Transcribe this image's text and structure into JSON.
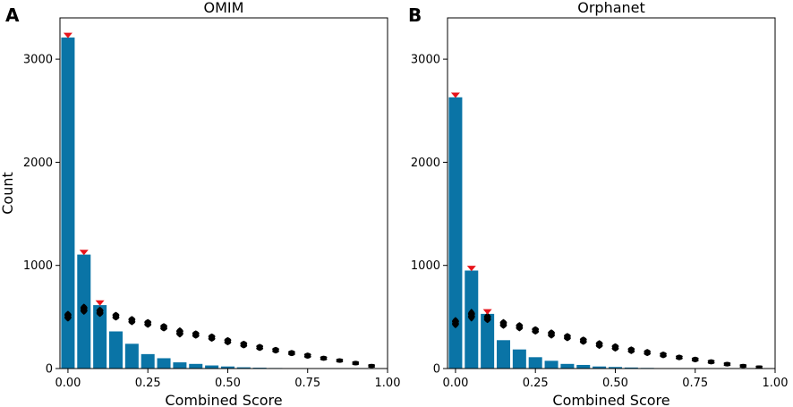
{
  "chart_data": [
    {
      "type": "bar",
      "panel_label": "A",
      "title": "OMIM",
      "xlabel": "Combined Score",
      "ylabel": "Count",
      "xlim": [
        -0.025,
        1.0
      ],
      "ylim": [
        0,
        3400
      ],
      "xticks": [
        0.0,
        0.25,
        0.5,
        0.75,
        1.0
      ],
      "xtick_labels": [
        "0.00",
        "0.25",
        "0.50",
        "0.75",
        "1.00"
      ],
      "yticks": [
        0,
        1000,
        2000,
        3000
      ],
      "ytick_labels": [
        "0",
        "1000",
        "2000",
        "3000"
      ],
      "bar_width": 0.042,
      "bar_color": "#0a74a6",
      "marker_color": "#e8141b",
      "null_color": "#000000",
      "categories": [
        0.0,
        0.05,
        0.1,
        0.15,
        0.2,
        0.25,
        0.3,
        0.35,
        0.4,
        0.45,
        0.5,
        0.55,
        0.6,
        0.65,
        0.7,
        0.75,
        0.8,
        0.85,
        0.9,
        0.95
      ],
      "values": [
        3210,
        1105,
        615,
        360,
        240,
        140,
        100,
        60,
        45,
        30,
        20,
        12,
        8,
        5,
        3,
        2,
        2,
        1,
        1,
        1
      ],
      "observed_markers": [
        {
          "x": 0.0,
          "y": 3230
        },
        {
          "x": 0.05,
          "y": 1125
        },
        {
          "x": 0.1,
          "y": 635
        }
      ],
      "null_distribution": [
        {
          "x": 0.0,
          "low": 455,
          "high": 560
        },
        {
          "x": 0.05,
          "low": 520,
          "high": 630
        },
        {
          "x": 0.1,
          "low": 500,
          "high": 600
        },
        {
          "x": 0.15,
          "low": 465,
          "high": 550
        },
        {
          "x": 0.2,
          "low": 420,
          "high": 510
        },
        {
          "x": 0.25,
          "low": 395,
          "high": 480
        },
        {
          "x": 0.3,
          "low": 360,
          "high": 440
        },
        {
          "x": 0.35,
          "low": 300,
          "high": 400
        },
        {
          "x": 0.4,
          "low": 290,
          "high": 370
        },
        {
          "x": 0.45,
          "low": 260,
          "high": 340
        },
        {
          "x": 0.5,
          "low": 225,
          "high": 305
        },
        {
          "x": 0.55,
          "low": 195,
          "high": 270
        },
        {
          "x": 0.6,
          "low": 170,
          "high": 240
        },
        {
          "x": 0.65,
          "low": 145,
          "high": 210
        },
        {
          "x": 0.7,
          "low": 120,
          "high": 180
        },
        {
          "x": 0.75,
          "low": 95,
          "high": 155
        },
        {
          "x": 0.8,
          "low": 75,
          "high": 125
        },
        {
          "x": 0.85,
          "low": 55,
          "high": 100
        },
        {
          "x": 0.9,
          "low": 30,
          "high": 75
        },
        {
          "x": 0.95,
          "low": 5,
          "high": 45
        }
      ]
    },
    {
      "type": "bar",
      "panel_label": "B",
      "title": "Orphanet",
      "xlabel": "Combined Score",
      "ylabel": "",
      "xlim": [
        -0.025,
        1.0
      ],
      "ylim": [
        0,
        3400
      ],
      "xticks": [
        0.0,
        0.25,
        0.5,
        0.75,
        1.0
      ],
      "xtick_labels": [
        "0.00",
        "0.25",
        "0.50",
        "0.75",
        "1.00"
      ],
      "yticks": [
        0,
        1000,
        2000,
        3000
      ],
      "ytick_labels": [
        "0",
        "1000",
        "2000",
        "3000"
      ],
      "bar_width": 0.042,
      "bar_color": "#0a74a6",
      "marker_color": "#e8141b",
      "null_color": "#000000",
      "categories": [
        0.0,
        0.05,
        0.1,
        0.15,
        0.2,
        0.25,
        0.3,
        0.35,
        0.4,
        0.45,
        0.5,
        0.55,
        0.6,
        0.65,
        0.7,
        0.75,
        0.8,
        0.85,
        0.9,
        0.95
      ],
      "values": [
        2630,
        950,
        530,
        275,
        185,
        110,
        75,
        45,
        35,
        20,
        15,
        10,
        6,
        4,
        3,
        2,
        2,
        1,
        1,
        1
      ],
      "observed_markers": [
        {
          "x": 0.0,
          "y": 2650
        },
        {
          "x": 0.05,
          "y": 970
        },
        {
          "x": 0.1,
          "y": 550
        }
      ],
      "null_distribution": [
        {
          "x": 0.0,
          "low": 390,
          "high": 500
        },
        {
          "x": 0.05,
          "low": 455,
          "high": 580
        },
        {
          "x": 0.1,
          "low": 440,
          "high": 540
        },
        {
          "x": 0.15,
          "low": 385,
          "high": 480
        },
        {
          "x": 0.2,
          "low": 360,
          "high": 450
        },
        {
          "x": 0.25,
          "low": 330,
          "high": 410
        },
        {
          "x": 0.3,
          "low": 290,
          "high": 380
        },
        {
          "x": 0.35,
          "low": 265,
          "high": 345
        },
        {
          "x": 0.4,
          "low": 230,
          "high": 310
        },
        {
          "x": 0.45,
          "low": 190,
          "high": 275
        },
        {
          "x": 0.5,
          "low": 165,
          "high": 245
        },
        {
          "x": 0.55,
          "low": 140,
          "high": 215
        },
        {
          "x": 0.6,
          "low": 120,
          "high": 190
        },
        {
          "x": 0.65,
          "low": 100,
          "high": 165
        },
        {
          "x": 0.7,
          "low": 80,
          "high": 135
        },
        {
          "x": 0.75,
          "low": 60,
          "high": 115
        },
        {
          "x": 0.8,
          "low": 40,
          "high": 90
        },
        {
          "x": 0.85,
          "low": 20,
          "high": 65
        },
        {
          "x": 0.9,
          "low": 5,
          "high": 45
        },
        {
          "x": 0.95,
          "low": 0,
          "high": 30
        }
      ]
    }
  ]
}
